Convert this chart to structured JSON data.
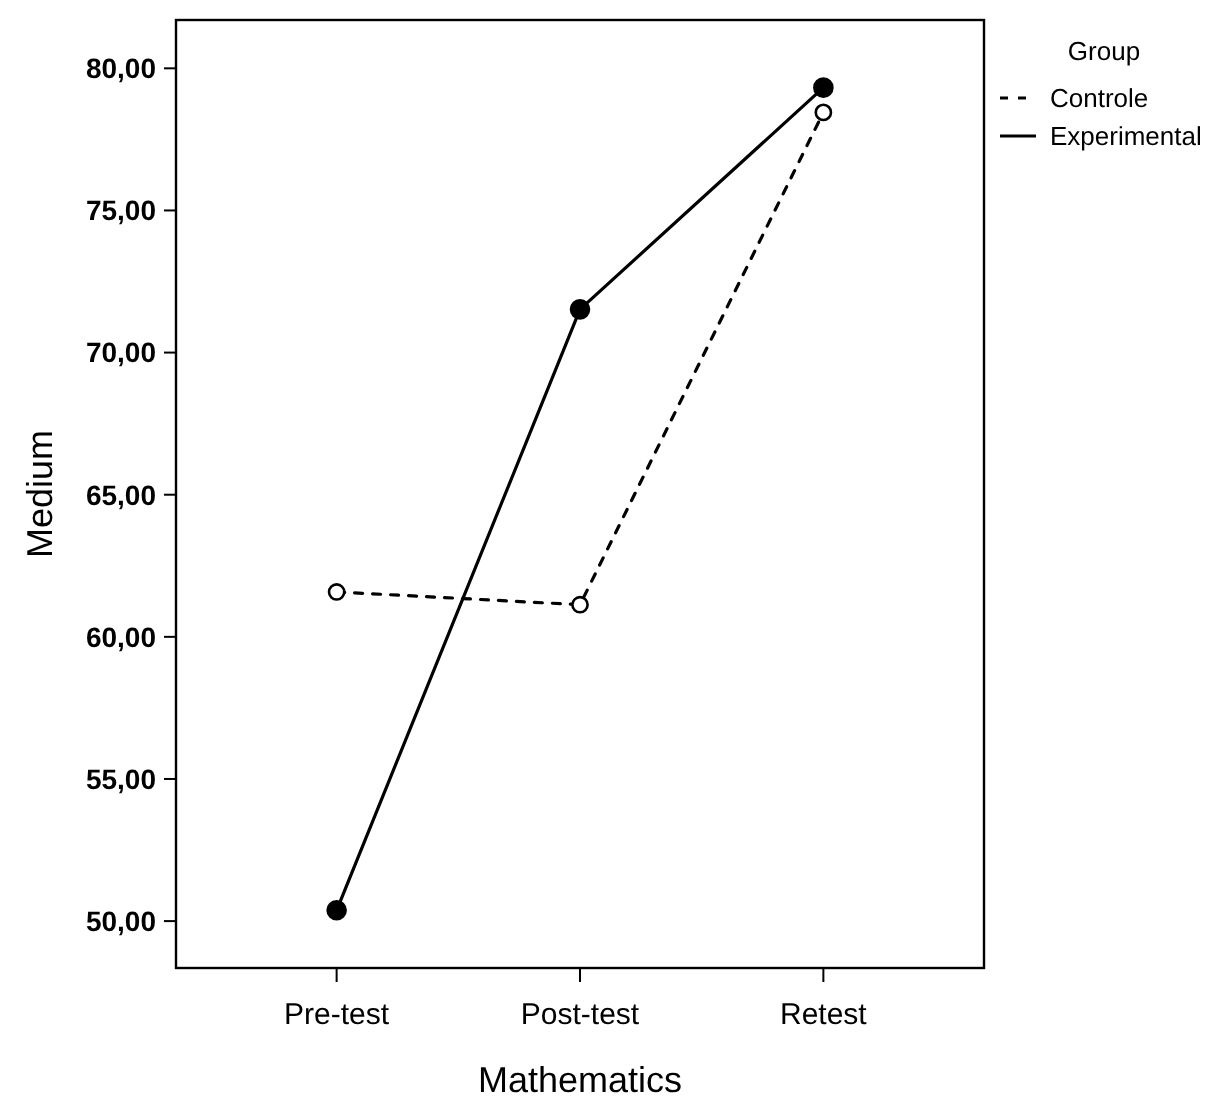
{
  "chart_data": {
    "type": "line",
    "xlabel": "Mathematics",
    "ylabel": "Medium",
    "legend_title": "Group",
    "categories": [
      "Pre-test",
      "Post-test",
      "Retest"
    ],
    "series": [
      {
        "name": "Controle",
        "color": "#000000",
        "line_style": "dashed",
        "values": [
          61.58,
          61.13,
          78.45
        ]
      },
      {
        "name": "Experimental",
        "color": "#000000",
        "line_style": "solid",
        "values": [
          50.38,
          71.52,
          79.32
        ]
      }
    ],
    "ylim": [
      48.35,
      81.7
    ],
    "yticks": [
      {
        "value": 50,
        "label": "50,00"
      },
      {
        "value": 55,
        "label": "55,00"
      },
      {
        "value": 60,
        "label": "60,00"
      },
      {
        "value": 65,
        "label": "65,00"
      },
      {
        "value": 70,
        "label": "70,00"
      },
      {
        "value": 75,
        "label": "75,00"
      },
      {
        "value": 80,
        "label": "80,00"
      }
    ],
    "marker": "circle",
    "legend": "top right",
    "grid": false
  }
}
